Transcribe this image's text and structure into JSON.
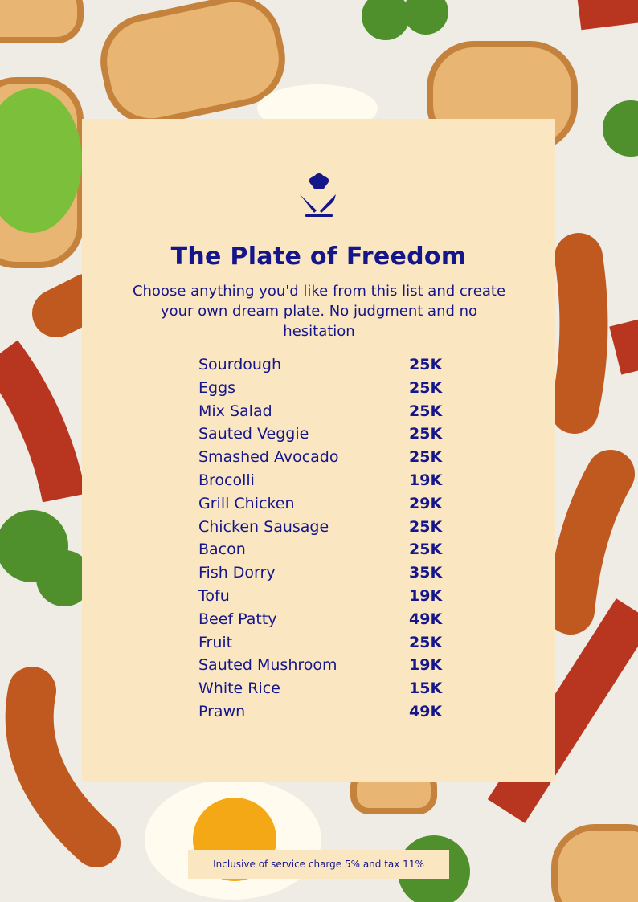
{
  "header": {
    "title": "The Plate of Freedom",
    "subtitle": "Choose anything you'd like from this list and create your own dream plate. No judgment and no hesitation"
  },
  "menu": {
    "items": [
      {
        "name": "Sourdough",
        "price": "25K"
      },
      {
        "name": "Eggs",
        "price": "25K"
      },
      {
        "name": "Mix Salad",
        "price": "25K"
      },
      {
        "name": "Sauted Veggie",
        "price": "25K"
      },
      {
        "name": "Smashed Avocado",
        "price": "25K"
      },
      {
        "name": "Brocolli",
        "price": "19K"
      },
      {
        "name": "Grill Chicken",
        "price": "29K"
      },
      {
        "name": "Chicken Sausage",
        "price": "25K"
      },
      {
        "name": "Bacon",
        "price": "25K"
      },
      {
        "name": "Fish Dorry",
        "price": "35K"
      },
      {
        "name": "Tofu",
        "price": "19K"
      },
      {
        "name": "Beef Patty",
        "price": "49K"
      },
      {
        "name": "Fruit",
        "price": "25K"
      },
      {
        "name": "Sauted Mushroom",
        "price": "19K"
      },
      {
        "name": "White Rice",
        "price": "15K"
      },
      {
        "name": "Prawn",
        "price": "49K"
      }
    ]
  },
  "footer": {
    "note": "Inclusive of service charge 5% and tax 11%"
  }
}
